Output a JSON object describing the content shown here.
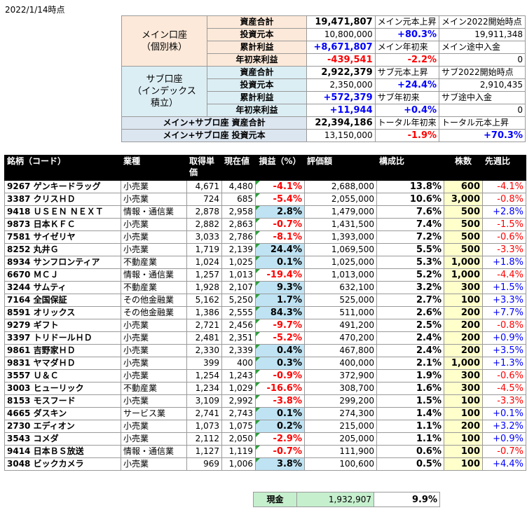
{
  "date": "2022/1/14時点",
  "main_account": {
    "group_label": "メイン口座\n（個別株）",
    "rows": [
      {
        "label": "資産合計",
        "value": "19,471,807",
        "info1": "メイン元本上昇",
        "info2": "メイン2022開始時点"
      },
      {
        "label": "投資元本",
        "value": "10,800,000",
        "info1": "+80.3%",
        "info2": "19,911,348"
      },
      {
        "label": "累計利益",
        "value": "+8,671,807",
        "info1": "メイン年初来",
        "info2": "メイン途中入金"
      },
      {
        "label": "年初来利益",
        "value": "-439,541",
        "info1": "-2.2%",
        "info2": "0"
      }
    ]
  },
  "sub_account": {
    "group_label": "サブ口座\n（インデックス\n積立）",
    "rows": [
      {
        "label": "資産合計",
        "value": "2,922,379",
        "info1": "サブ元本上昇",
        "info2": "サブ2022開始時点"
      },
      {
        "label": "投資元本",
        "value": "2,350,000",
        "info1": "+24.4%",
        "info2": "2,910,435"
      },
      {
        "label": "累計利益",
        "value": "+572,379",
        "info1": "サブ年初来",
        "info2": "サブ途中入金"
      },
      {
        "label": "年初来利益",
        "value": "+11,944",
        "info1": "+0.4%",
        "info2": "0"
      }
    ]
  },
  "total": {
    "rows": [
      {
        "label": "メイン+サブロ座 資産合計",
        "value": "22,394,186",
        "info1": "トータル年初来",
        "info2": "トータル元本上昇"
      },
      {
        "label": "メイン+サブロ座 投資元本",
        "value": "13,150,000",
        "info1": "-1.9%",
        "info2": "+70.3%"
      }
    ]
  },
  "holdings_header": {
    "name": "銘柄（コード）",
    "sector": "業種",
    "cost": "取得単価",
    "price": "現在値",
    "pl": "損益（%）",
    "value": "評価額",
    "share": "構成比",
    "qty": "株数",
    "week": "先週比"
  },
  "holdings": [
    {
      "name": "9267 ゲンキードラッグ",
      "sector": "小売業",
      "cost": "4,671",
      "price": "4,480",
      "pl": "-4.1%",
      "value": "2,688,000",
      "share": "13.8%",
      "qty": "600",
      "week": "-4.1%"
    },
    {
      "name": "3387 クリスＨＤ",
      "sector": "小売業",
      "cost": "724",
      "price": "685",
      "pl": "-5.4%",
      "value": "2,055,000",
      "share": "10.6%",
      "qty": "3,000",
      "week": "-0.8%"
    },
    {
      "name": "9418 ＵＳＥＮ ＮＥＸＴ",
      "sector": "情報・通信業",
      "cost": "2,878",
      "price": "2,958",
      "pl": "2.8%",
      "value": "1,479,000",
      "share": "7.6%",
      "qty": "500",
      "week": "+2.8%"
    },
    {
      "name": "9873 日本ＫＦＣ",
      "sector": "小売業",
      "cost": "2,882",
      "price": "2,863",
      "pl": "-0.7%",
      "value": "1,431,500",
      "share": "7.4%",
      "qty": "500",
      "week": "-1.5%"
    },
    {
      "name": "7581 サイゼリヤ",
      "sector": "小売業",
      "cost": "3,033",
      "price": "2,786",
      "pl": "-8.1%",
      "value": "1,393,000",
      "share": "7.2%",
      "qty": "500",
      "week": "-0.6%"
    },
    {
      "name": "8252 丸井Ｇ",
      "sector": "小売業",
      "cost": "1,719",
      "price": "2,139",
      "pl": "24.4%",
      "value": "1,069,500",
      "share": "5.5%",
      "qty": "500",
      "week": "-3.3%"
    },
    {
      "name": "8934 サンフロンティア",
      "sector": "不動産業",
      "cost": "1,024",
      "price": "1,025",
      "pl": "0.1%",
      "value": "1,025,000",
      "share": "5.3%",
      "qty": "1,000",
      "week": "+1.8%"
    },
    {
      "name": "6670 ＭＣＪ",
      "sector": "情報・通信業",
      "cost": "1,257",
      "price": "1,013",
      "pl": "-19.4%",
      "value": "1,013,000",
      "share": "5.2%",
      "qty": "1,000",
      "week": "-4.4%"
    },
    {
      "name": "3244 サムティ",
      "sector": "不動産業",
      "cost": "1,928",
      "price": "2,107",
      "pl": "9.3%",
      "value": "632,100",
      "share": "3.2%",
      "qty": "300",
      "week": "+1.5%"
    },
    {
      "name": "7164 全国保証",
      "sector": "その他金融業",
      "cost": "5,162",
      "price": "5,250",
      "pl": "1.7%",
      "value": "525,000",
      "share": "2.7%",
      "qty": "100",
      "week": "+3.3%"
    },
    {
      "name": "8591 オリックス",
      "sector": "その他金融業",
      "cost": "1,386",
      "price": "2,555",
      "pl": "84.3%",
      "value": "511,000",
      "share": "2.6%",
      "qty": "200",
      "week": "+7.7%"
    },
    {
      "name": "9279 ギフト",
      "sector": "小売業",
      "cost": "2,721",
      "price": "2,456",
      "pl": "-9.7%",
      "value": "491,200",
      "share": "2.5%",
      "qty": "200",
      "week": "-0.8%"
    },
    {
      "name": "3397 トリドールＨＤ",
      "sector": "小売業",
      "cost": "2,481",
      "price": "2,351",
      "pl": "-5.2%",
      "value": "470,200",
      "share": "2.4%",
      "qty": "200",
      "week": "+0.9%"
    },
    {
      "name": "9861 吉野家ＨＤ",
      "sector": "小売業",
      "cost": "2,330",
      "price": "2,339",
      "pl": "0.4%",
      "value": "467,800",
      "share": "2.4%",
      "qty": "200",
      "week": "+3.5%"
    },
    {
      "name": "9831 ヤマダＨＤ",
      "sector": "小売業",
      "cost": "399",
      "price": "400",
      "pl": "0.3%",
      "value": "400,000",
      "share": "2.1%",
      "qty": "1,000",
      "week": "+1.3%"
    },
    {
      "name": "3557 Ｕ＆Ｃ",
      "sector": "小売業",
      "cost": "1,254",
      "price": "1,243",
      "pl": "-0.9%",
      "value": "372,900",
      "share": "1.9%",
      "qty": "300",
      "week": "-0.6%"
    },
    {
      "name": "3003 ヒューリック",
      "sector": "不動産業",
      "cost": "1,234",
      "price": "1,029",
      "pl": "-16.6%",
      "value": "308,700",
      "share": "1.6%",
      "qty": "300",
      "week": "-4.5%"
    },
    {
      "name": "8153 モスフード",
      "sector": "小売業",
      "cost": "3,109",
      "price": "2,992",
      "pl": "-3.8%",
      "value": "299,200",
      "share": "1.5%",
      "qty": "100",
      "week": "-3.3%"
    },
    {
      "name": "4665 ダスキン",
      "sector": "サービス業",
      "cost": "2,741",
      "price": "2,743",
      "pl": "0.1%",
      "value": "274,300",
      "share": "1.4%",
      "qty": "100",
      "week": "+0.1%"
    },
    {
      "name": "2730 エディオン",
      "sector": "小売業",
      "cost": "1,073",
      "price": "1,075",
      "pl": "0.2%",
      "value": "215,000",
      "share": "1.1%",
      "qty": "200",
      "week": "+3.2%"
    },
    {
      "name": "3543 コメダ",
      "sector": "小売業",
      "cost": "2,112",
      "price": "2,050",
      "pl": "-2.9%",
      "value": "205,000",
      "share": "1.1%",
      "qty": "100",
      "week": "+0.9%"
    },
    {
      "name": "9414 日本ＢＳ放送",
      "sector": "情報・通信業",
      "cost": "1,127",
      "price": "1,119",
      "pl": "-0.7%",
      "value": "111,900",
      "share": "0.6%",
      "qty": "100",
      "week": "-0.7%"
    },
    {
      "name": "3048 ビックカメラ",
      "sector": "小売業",
      "cost": "969",
      "price": "1,006",
      "pl": "3.8%",
      "value": "100,600",
      "share": "0.5%",
      "qty": "100",
      "week": "+4.4%"
    }
  ],
  "cash": {
    "label": "現金",
    "value": "1,932,907",
    "share": "9.9%"
  }
}
